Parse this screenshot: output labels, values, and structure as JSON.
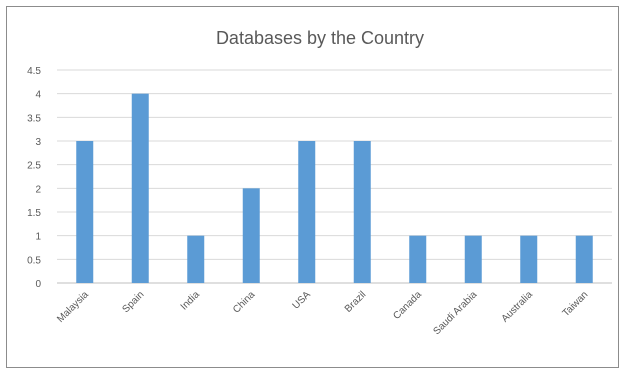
{
  "chart_data": {
    "type": "bar",
    "title": "Databases by the Country",
    "xlabel": "",
    "ylabel": "",
    "categories": [
      "Malaysia",
      "Spain",
      "India",
      "China",
      "USA",
      "Brazil",
      "Canada",
      "Saudi Arabia",
      "Australia",
      "Taiwan"
    ],
    "values": [
      3,
      4,
      1,
      2,
      3,
      3,
      1,
      1,
      1,
      1
    ],
    "ylim": [
      0,
      4.5
    ],
    "yticks": [
      "0",
      "0.5",
      "1",
      "1.5",
      "2",
      "2.5",
      "3",
      "3.5",
      "4",
      "4.5"
    ],
    "grid": true,
    "legend": "none",
    "bar_color": "#5b9bd5"
  }
}
